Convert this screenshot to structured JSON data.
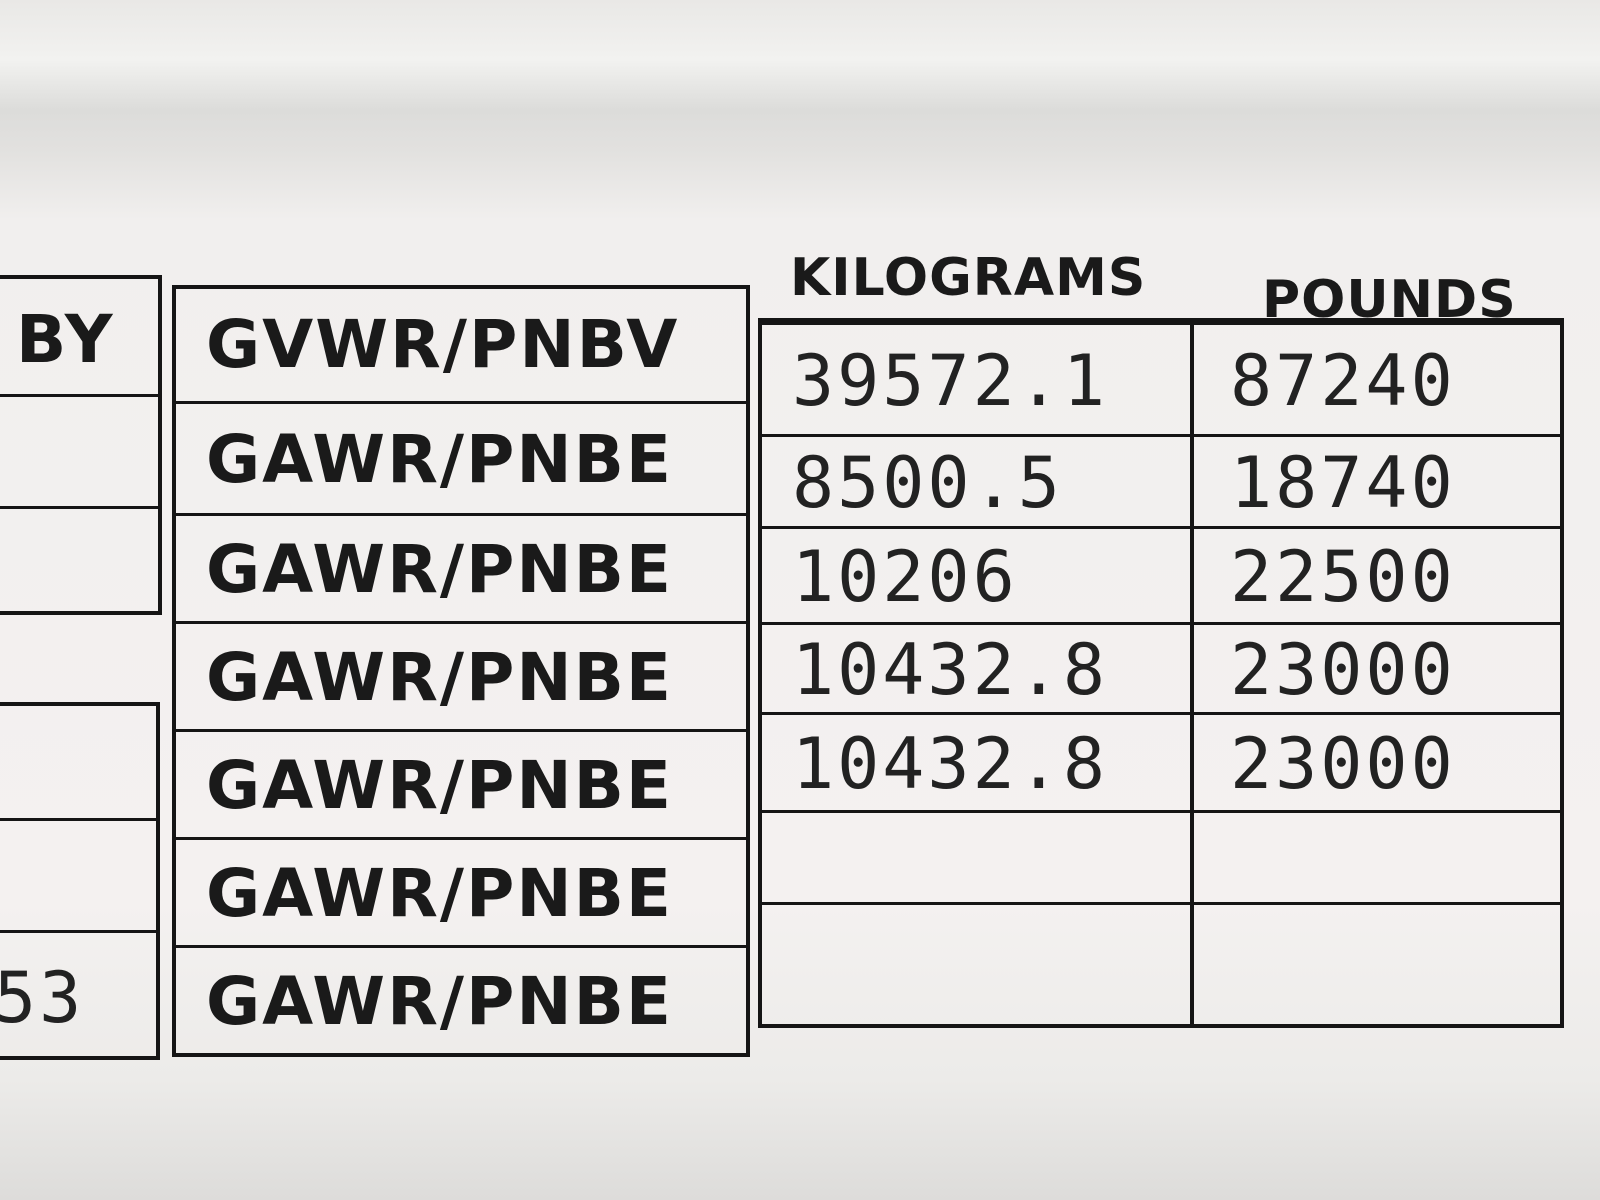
{
  "left_table": {
    "header": "BY",
    "partial_value": "53"
  },
  "headers": {
    "kilograms": "KILOGRAMS",
    "pounds": "POUNDS"
  },
  "rows": [
    {
      "label": "GVWR/PNBV",
      "kg": "39572.1",
      "lb": "87240"
    },
    {
      "label": "GAWR/PNBE",
      "kg": "8500.5",
      "lb": "18740"
    },
    {
      "label": "GAWR/PNBE",
      "kg": "10206",
      "lb": "22500"
    },
    {
      "label": "GAWR/PNBE",
      "kg": "10432.8",
      "lb": "23000"
    },
    {
      "label": "GAWR/PNBE",
      "kg": "10432.8",
      "lb": "23000"
    },
    {
      "label": "GAWR/PNBE",
      "kg": "",
      "lb": ""
    },
    {
      "label": "GAWR/PNBE",
      "kg": "",
      "lb": ""
    }
  ]
}
